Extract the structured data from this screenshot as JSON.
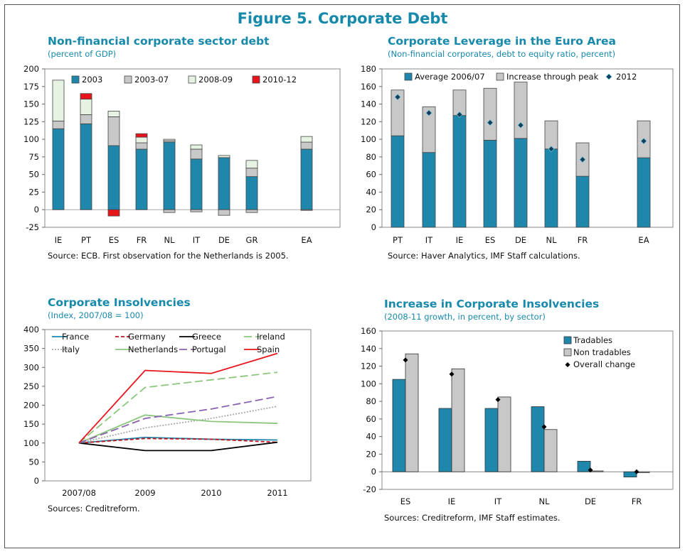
{
  "figure_title": "Figure 5. Corporate Debt",
  "colors": {
    "accent": "#1789ab",
    "blue": "#1e87ab",
    "grey": "#c8c8c8",
    "light_green": "#e6f3e2",
    "red": "#e8141c"
  },
  "chart_data": [
    {
      "type": "bar",
      "title": "Non-financial corporate sector debt",
      "subtitle": "(percent of GDP)",
      "source": "Source: ECB. First observation for the Netherlands is 2005.",
      "ylim": [
        -25,
        200
      ],
      "yticks": [
        "200",
        "175",
        "150",
        "125",
        "100",
        "75",
        "50",
        "25",
        "0",
        "-25"
      ],
      "categories": [
        "IE",
        "PT",
        "ES",
        "FR",
        "NL",
        "IT",
        "DE",
        "GR",
        "EA"
      ],
      "series": [
        {
          "name": "2003",
          "values": [
            115,
            122,
            91,
            86,
            96,
            72,
            74,
            47,
            86
          ]
        },
        {
          "name": "2003-07",
          "values": [
            11,
            13,
            41,
            9,
            2,
            14,
            0,
            12,
            10
          ]
        },
        {
          "name": "2008-09",
          "values": [
            58,
            22,
            8,
            8,
            2,
            6,
            3,
            11,
            8
          ]
        },
        {
          "name": "2010-12",
          "values": [
            0,
            8,
            -8,
            5,
            0,
            0,
            0,
            0,
            0
          ]
        }
      ],
      "negative_stack": [
        0,
        0,
        -9,
        0,
        -4,
        -3,
        -8,
        -4,
        -1
      ]
    },
    {
      "type": "bar",
      "title": "Corporate Leverage in the Euro Area",
      "subtitle": "(Non-financial corporates, debt to equity ratio, percent)",
      "source": "Source: Haver Analytics, IMF Staff calculations.",
      "ylim": [
        0,
        180
      ],
      "yticks": [
        "180",
        "160",
        "140",
        "120",
        "100",
        "80",
        "60",
        "40",
        "20",
        "0"
      ],
      "categories": [
        "PT",
        "IT",
        "IE",
        "ES",
        "DE",
        "NL",
        "FR",
        "EA"
      ],
      "series": [
        {
          "name": "Average 2006/07",
          "values": [
            104,
            85,
            127,
            99,
            101,
            89,
            58,
            79
          ]
        },
        {
          "name": "Increase through peak",
          "values": [
            52,
            52,
            29,
            59,
            64,
            32,
            38,
            42
          ]
        },
        {
          "name": "2012",
          "values": [
            148,
            130,
            128,
            119,
            116,
            89,
            77,
            98
          ]
        }
      ]
    },
    {
      "type": "line",
      "title": "Corporate Insolvencies",
      "subtitle": "(Index, 2007/08 = 100)",
      "source": "Sources: Creditreform.",
      "ylim": [
        0,
        400
      ],
      "yticks": [
        "400",
        "350",
        "300",
        "250",
        "200",
        "150",
        "100",
        "50",
        "0"
      ],
      "x": [
        "2007/08",
        "2009",
        "2010",
        "2011"
      ],
      "series": [
        {
          "name": "France",
          "values": [
            100,
            115,
            110,
            108
          ],
          "color": "#1e87ab",
          "dash": ""
        },
        {
          "name": "Germany",
          "values": [
            100,
            112,
            110,
            102
          ],
          "color": "#c0141c",
          "dash": "5,3"
        },
        {
          "name": "Greece",
          "values": [
            100,
            80,
            80,
            102
          ],
          "color": "#000000",
          "dash": ""
        },
        {
          "name": "Ireland",
          "values": [
            100,
            247,
            267,
            287
          ],
          "color": "#8cc67e",
          "dash": "11,5"
        },
        {
          "name": "Italy",
          "values": [
            100,
            140,
            165,
            197
          ],
          "color": "#a8a8a8",
          "dash": "2,2"
        },
        {
          "name": "Netherlands",
          "values": [
            100,
            174,
            157,
            152
          ],
          "color": "#8cc67e",
          "dash": ""
        },
        {
          "name": "Portugal",
          "values": [
            100,
            165,
            190,
            223
          ],
          "color": "#8a62b0",
          "dash": "11,5"
        },
        {
          "name": "Spain",
          "values": [
            100,
            292,
            284,
            337
          ],
          "color": "#e8141c",
          "dash": ""
        }
      ]
    },
    {
      "type": "bar",
      "title": "Increase in Corporate Insolvencies",
      "subtitle": "(2008-11 growth, in percent, by sector)",
      "source": "Sources: Creditreform, IMF Staff estimates.",
      "ylim": [
        -20,
        160
      ],
      "yticks": [
        "160",
        "140",
        "120",
        "100",
        "80",
        "60",
        "40",
        "20",
        "0",
        "-20"
      ],
      "categories": [
        "ES",
        "IE",
        "IT",
        "NL",
        "DE",
        "FR"
      ],
      "series": [
        {
          "name": "Tradables",
          "values": [
            105,
            72,
            72,
            74,
            12,
            -6
          ]
        },
        {
          "name": "Non tradables",
          "values": [
            134,
            117,
            85,
            48,
            1,
            -1
          ]
        },
        {
          "name": "Overall change",
          "values": [
            127,
            111,
            82,
            51,
            2,
            0
          ]
        }
      ]
    }
  ]
}
